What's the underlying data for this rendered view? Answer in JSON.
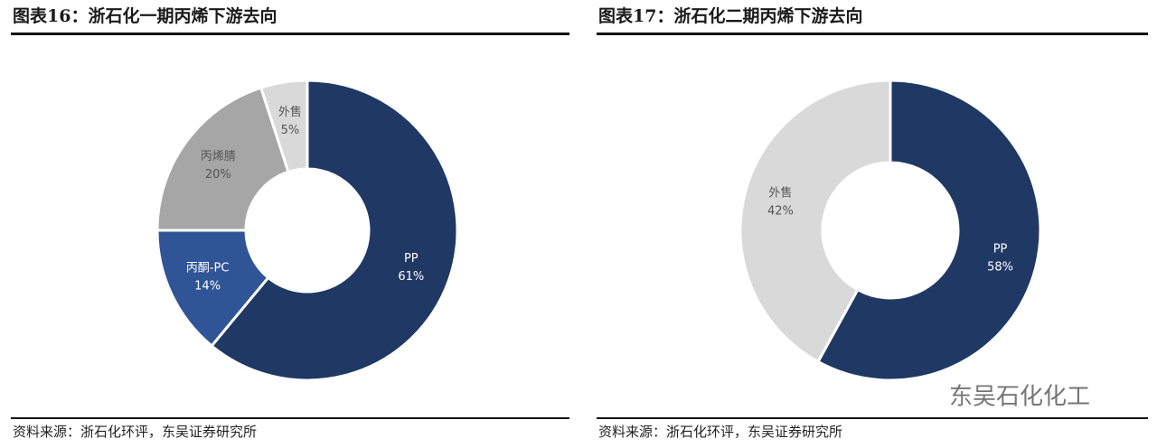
{
  "chart_data": [
    {
      "type": "donut",
      "title": "图表16：浙石化一期丙烯下游去向",
      "categories": [
        "PP",
        "丙酮-PC",
        "丙烯腈",
        "外售"
      ],
      "values": [
        61,
        14,
        20,
        5
      ],
      "value_labels": [
        "61%",
        "14%",
        "20%",
        "5%"
      ],
      "colors": [
        "#1f3864",
        "#2f5597",
        "#a6a6a6",
        "#d9d9d9"
      ],
      "source": "资料来源：浙石化环评，东吴证券研究所"
    },
    {
      "type": "donut",
      "title": "图表17：浙石化二期丙烯下游去向",
      "categories": [
        "PP",
        "外售"
      ],
      "values": [
        58,
        42
      ],
      "value_labels": [
        "58%",
        "42%"
      ],
      "colors": [
        "#1f3864",
        "#d9d9d9"
      ],
      "source": "资料来源：浙石化环评，东吴证券研究所"
    }
  ],
  "watermark": "东吴石化化工"
}
